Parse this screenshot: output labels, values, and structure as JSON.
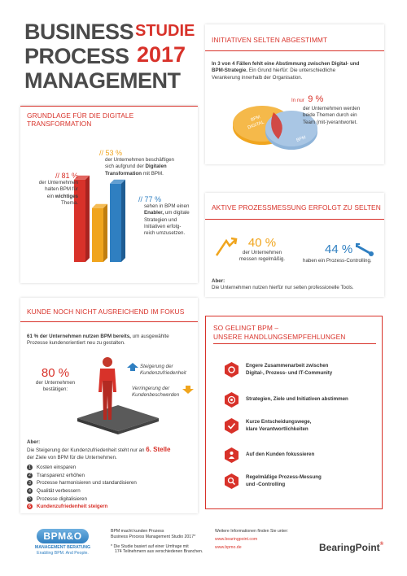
{
  "header": {
    "title_lines": [
      "BUSINESS",
      "PROCESS",
      "MANAGEMENT"
    ],
    "studie": "STUDIE",
    "year": "2017"
  },
  "grundlage": {
    "title_line1": "GRUNDLAGE FÜR DIE DIGITALE",
    "title_line2": "TRANSFORMATION",
    "stat1": {
      "pct": "// 81 %",
      "l1": "der Unternehmen",
      "l2": "halten BPM für",
      "l3": "ein",
      "bold": "wichtiges",
      "l4": "Thema."
    },
    "stat2": {
      "pct": "// 53 %",
      "l1": "der Unternehmen beschäftigen",
      "l2": "sich aufgrund der",
      "bold1": "Digitalen",
      "bold2": "Transformation",
      "l3": "mit BPM."
    },
    "stat3": {
      "pct": "// 77 %",
      "l1": "sehen in BPM einen",
      "bold": "Enabler,",
      "l2": "um digitale",
      "l3": "Strategien und",
      "l4": "Initiativen erfolg-",
      "l5": "reich umzusetzen."
    },
    "bars": [
      {
        "value": 81,
        "color": "#d8322a",
        "dark": "#a82420"
      },
      {
        "value": 53,
        "color": "#f0a51e",
        "dark": "#c07e10"
      },
      {
        "value": 77,
        "color": "#2f7fc1",
        "dark": "#1f5d93"
      }
    ]
  },
  "initiativen": {
    "title": "INITIATIVEN SELTEN ABGESTIMMT",
    "bold_line1": "In 3 von 4 Fällen fehlt eine Abstimmung zwischen Digital- und",
    "bold_line2": "BPM-Strategie.",
    "text_line2": " Ein Grund hierfür: Die unterschiedliche",
    "text_line3": "Verankerung innerhalb der Organisation.",
    "venn_left": "BPM",
    "venn_left2": "DIGITAL",
    "venn_right": "BPM",
    "pct_prefix": "In nur",
    "pct": "9 %",
    "pct_l1": "der Unternehmen werden",
    "pct_l2": "beide Themen durch ein",
    "pct_l3": "Team (mit-)verantwortet."
  },
  "messung": {
    "title": "AKTIVE PROZESSMESSUNG ERFOLGT ZU SELTEN",
    "pct1": "40 %",
    "pct1_l1": "der Unternehmen",
    "pct1_l2": "messen regelmäßig.",
    "pct2": "44 %",
    "pct2_l1": "haben ein Prozess-Controlling.",
    "aber": "Aber:",
    "aber_text": "Die Unternehmen nutzen hierfür nur selten professionelle Tools."
  },
  "kunde": {
    "title": "KUNDE NOCH NICHT AUSREICHEND IM FOKUS",
    "intro_bold": "61 % der Unternehmen nutzen BPM bereits,",
    "intro_rest": " um ausgewählte",
    "intro_l2": "Prozesse kundenorientiert neu zu gestalten.",
    "pct": "80 %",
    "pct_l1": "der Unternehmen",
    "pct_l2": "bestätigen:",
    "up_l1": "Steigerung der",
    "up_l2": "Kundenzufriedenheit",
    "down_l1": "Verringerung der",
    "down_l2": "Kundenbeschwerden",
    "aber": "Aber:",
    "aber_l1a": "Die Steigerung der Kundenzufriedenheit steht nur an",
    "aber_rank": "6. Stelle",
    "aber_l2": "der Ziele von BPM für die Unternehmen.",
    "list": [
      "Kosten einsparen",
      "Transparenz erhöhen",
      "Prozesse harmonisieren und standardisieren",
      "Qualität verbessern",
      "Prozesse digitalisieren",
      "Kundenzufriedenheit steigern"
    ],
    "nums": [
      "1",
      "2",
      "3",
      "4",
      "5",
      "6"
    ]
  },
  "empfehlungen": {
    "title_l1": "SO GELINGT BPM –",
    "title_l2": "UNSERE HANDLUNGSEMPFEHLUNGEN",
    "items": [
      {
        "l1": "Engere Zusammenarbeit zwischen",
        "l2": "Digital-, Prozess- und IT-Community",
        "icon": "gear-icon"
      },
      {
        "l1": "Strategien, Ziele und Initiativen abstimmen",
        "l2": "",
        "icon": "target-icon"
      },
      {
        "l1": "Kurze Entscheidungswege,",
        "l2": "klare Verantwortlichkeiten",
        "icon": "check-icon"
      },
      {
        "l1": "Auf den Kunden fokussieren",
        "l2": "",
        "icon": "person-icon"
      },
      {
        "l1": "Regelmäßige Prozess-Messung",
        "l2": "und -Controlling",
        "icon": "magnifier-icon"
      }
    ]
  },
  "footer": {
    "logo_text": "BPM&O",
    "logo_l1": "MANAGEMENT BERATUNG",
    "logo_l2": "Enabling BPM. And People.",
    "mid_l1": "BPM macht kunden Prozess",
    "mid_l2": "Business Process Management Studio 2017*",
    "note_l1": "* Die Studie basiert auf einer Umfrage mit",
    "note_l2": "174 Teilnehmern aus verschiedenen Branchen.",
    "right_l1": "Weitere Informationen finden Sie unter:",
    "link1": "www.bearingpoint.com",
    "link2": "www.bpmo.de",
    "brand": "BearingPoint",
    "brand_mark": "®"
  },
  "colors": {
    "accent": "#d8322a",
    "orange": "#f0a51e",
    "blue": "#2f7fc1",
    "dark": "#3a3a3a"
  }
}
